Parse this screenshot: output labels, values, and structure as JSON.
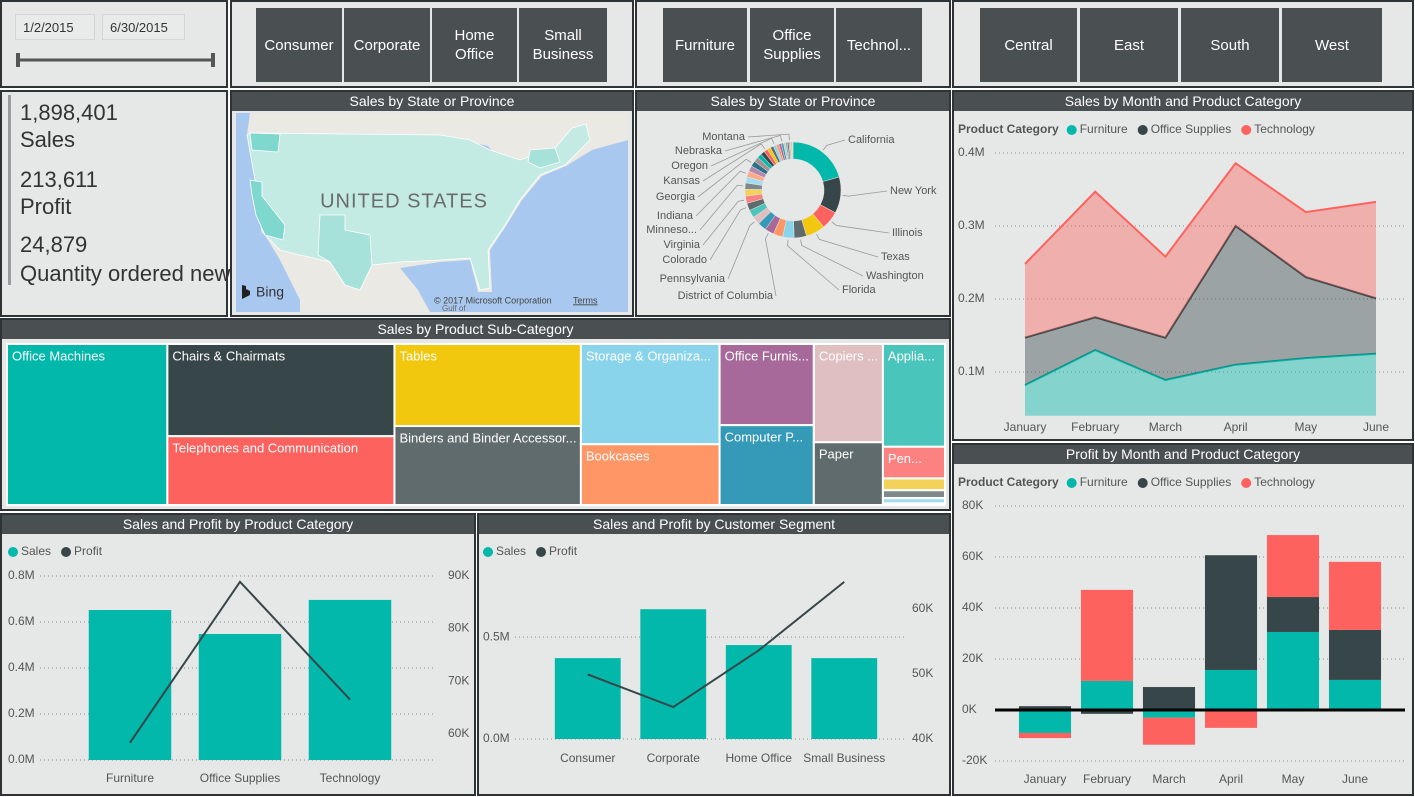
{
  "date_slicer": {
    "start": "1/2/2015",
    "end": "6/30/2015"
  },
  "segment_slicer": {
    "options": [
      "Consumer",
      "Corporate",
      "Home Office",
      "Small Business"
    ]
  },
  "category_slicer": {
    "options": [
      "Furniture",
      "Office Supplies",
      "Technol..."
    ]
  },
  "region_slicer": {
    "options": [
      "Central",
      "East",
      "South",
      "West"
    ]
  },
  "cards": [
    {
      "value": "1,898,401",
      "label": "Sales"
    },
    {
      "value": "213,611",
      "label": "Profit"
    },
    {
      "value": "24,879",
      "label": "Quantity ordered new"
    }
  ],
  "map": {
    "title": "Sales by State or Province",
    "country_label": "UNITED STATES",
    "provider": "Bing",
    "copyright": "© 2017 Microsoft Corporation",
    "terms": "Terms",
    "water_label": "Gulf of"
  },
  "chart_data": [
    {
      "type": "pie",
      "donut": true,
      "title": "Sales by State or Province",
      "categories": [
        "California",
        "New York",
        "Illinois",
        "Texas",
        "Washington",
        "Florida",
        null,
        "District of Columbia",
        null,
        "Pennsylvania",
        null,
        "Colorado",
        "Virginia",
        null,
        "Minneso...",
        null,
        "Indiana",
        null,
        "Georgia",
        null,
        null,
        null,
        "Kansas",
        null,
        null,
        "Oregon",
        null,
        null,
        "Nebraska",
        null,
        null,
        null,
        "Montana",
        null,
        null,
        null
      ],
      "values": [
        270000,
        160000,
        80000,
        85000,
        55000,
        50000,
        42000,
        40000,
        38000,
        36000,
        34000,
        33000,
        32000,
        30000,
        28000,
        27000,
        26000,
        25000,
        24000,
        22000,
        20000,
        18000,
        17000,
        15000,
        14000,
        13000,
        12000,
        11000,
        10000,
        9000,
        8000,
        7000,
        6000,
        5000,
        4000,
        3000
      ],
      "colors": [
        "#01b8aa",
        "#374649",
        "#fd625e",
        "#f2c80f",
        "#5f6b6d",
        "#8ad4eb",
        "#fe9666",
        "#a66999",
        "#3599b8",
        "#dfbfbf",
        "#4ac5bb",
        "#5f6b6d",
        "#fb8281",
        "#f4d25a",
        "#7f898a",
        "#a4ddee",
        "#fdab89",
        "#b687ac",
        "#28738a",
        "#a78f8f"
      ]
    },
    {
      "type": "treemap",
      "title": "Sales by Product Sub-Category",
      "categories": [
        "Office Machines",
        "Chairs & Chairmats",
        "Telephones and Communication",
        "Tables",
        "Binders and Binder Accessor...",
        "Storage & Organiza...",
        "Bookcases",
        "Office Furnis...",
        "Computer P...",
        "Copiers ...",
        "Paper",
        "Applia...",
        "Pen...",
        null,
        null,
        null,
        null
      ],
      "values": [
        315700,
        256000,
        191000,
        187000,
        180000,
        170000,
        103000,
        93500,
        92000,
        83000,
        53000,
        78000,
        24000,
        9000,
        6000,
        4000,
        1200
      ],
      "colors": [
        "#01b8aa",
        "#374649",
        "#fd625e",
        "#f2c80f",
        "#5f6b6d",
        "#8ad4eb",
        "#fe9666",
        "#a66999",
        "#3599b8",
        "#dfbfbf",
        "#5f6b6d",
        "#4ac5bb",
        "#fb8281",
        "#f4d25a",
        "#7f898a",
        "#a4ddee",
        "#fdab89"
      ]
    },
    {
      "type": "area",
      "stacked": true,
      "title": "Sales by Month and Product Category",
      "legend_title": "Product Category",
      "categories": [
        "January",
        "February",
        "March",
        "April",
        "May",
        "June"
      ],
      "series": [
        {
          "name": "Furniture",
          "color": "#01b8aa",
          "values": [
            82000,
            130000,
            89000,
            110000,
            119000,
            125000
          ]
        },
        {
          "name": "Office Supplies",
          "color": "#374649",
          "values": [
            65000,
            45000,
            58000,
            190000,
            111000,
            76000
          ]
        },
        {
          "name": "Technology",
          "color": "#fd625e",
          "values": [
            101000,
            172000,
            111000,
            86000,
            89000,
            132000
          ]
        }
      ],
      "ylim": [
        40000,
        420000
      ],
      "yticks": [
        {
          "value": 100000,
          "label": "0.1M"
        },
        {
          "value": 200000,
          "label": "0.2M"
        },
        {
          "value": 300000,
          "label": "0.3M"
        },
        {
          "value": 400000,
          "label": "0.4M"
        }
      ],
      "grid": true
    },
    {
      "type": "bar",
      "stacked": true,
      "title": "Profit by Month and Product Category",
      "legend_title": "Product Category",
      "categories": [
        "January",
        "February",
        "March",
        "April",
        "May",
        "June"
      ],
      "series": [
        {
          "name": "Furniture",
          "color": "#01b8aa",
          "values": [
            -9000,
            11400,
            -3000,
            15700,
            30600,
            11800
          ]
        },
        {
          "name": "Office Supplies",
          "color": "#374649",
          "values": [
            1500,
            -1500,
            9000,
            45000,
            13700,
            19600
          ]
        },
        {
          "name": "Technology",
          "color": "#fd625e",
          "values": [
            -2000,
            35700,
            -10600,
            -7000,
            24300,
            26700
          ]
        }
      ],
      "ylim": [
        -20000,
        80000
      ],
      "yticks": [
        {
          "value": -20000,
          "label": "-20K"
        },
        {
          "value": 0,
          "label": "0K"
        },
        {
          "value": 20000,
          "label": "20K"
        },
        {
          "value": 40000,
          "label": "40K"
        },
        {
          "value": 60000,
          "label": "60K"
        },
        {
          "value": 80000,
          "label": "80K"
        }
      ],
      "grid": true
    },
    {
      "type": "combo",
      "title": "Sales and Profit by Product Category",
      "categories": [
        "Furniture",
        "Office Supplies",
        "Technology"
      ],
      "series": [
        {
          "name": "Sales",
          "color": "#01b8aa",
          "type": "bar",
          "values": [
            652000,
            548000,
            696000
          ]
        },
        {
          "name": "Profit",
          "color": "#374649",
          "type": "line",
          "axis": "y2",
          "values": [
            58300,
            88900,
            66500
          ]
        }
      ],
      "ylim": [
        0,
        800000
      ],
      "yticks": [
        {
          "value": 0,
          "label": "0.0M"
        },
        {
          "value": 200000,
          "label": "0.2M"
        },
        {
          "value": 400000,
          "label": "0.4M"
        },
        {
          "value": 600000,
          "label": "0.6M"
        },
        {
          "value": 800000,
          "label": "0.8M"
        }
      ],
      "y2lim": [
        55000,
        90000
      ],
      "y2ticks": [
        {
          "value": 60000,
          "label": "60K"
        },
        {
          "value": 70000,
          "label": "70K"
        },
        {
          "value": 80000,
          "label": "80K"
        },
        {
          "value": 90000,
          "label": "90K"
        }
      ],
      "grid": true
    },
    {
      "type": "combo",
      "title": "Sales and Profit by Customer Segment",
      "categories": [
        "Consumer",
        "Corporate",
        "Home Office",
        "Small Business"
      ],
      "series": [
        {
          "name": "Sales",
          "color": "#01b8aa",
          "type": "bar",
          "values": [
            397000,
            637000,
            461000,
            397000
          ]
        },
        {
          "name": "Profit",
          "color": "#374649",
          "type": "line",
          "axis": "y2",
          "values": [
            49900,
            44900,
            53600,
            64100
          ]
        }
      ],
      "ylim": [
        0,
        800000
      ],
      "yticks": [
        {
          "value": 0,
          "label": "0.0M"
        },
        {
          "value": 500000,
          "label": "0.5M"
        }
      ],
      "y2lim": [
        40000,
        65000
      ],
      "y2ticks": [
        {
          "value": 40000,
          "label": "40K"
        },
        {
          "value": 50000,
          "label": "50K"
        },
        {
          "value": 60000,
          "label": "60K"
        }
      ],
      "grid": true
    }
  ]
}
